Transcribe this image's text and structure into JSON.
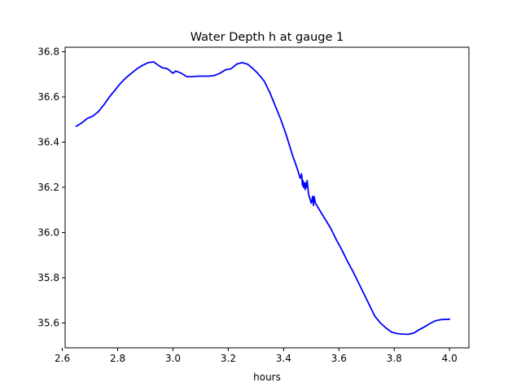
{
  "chart_data": {
    "type": "line",
    "title": "Water Depth h at gauge 1",
    "xlabel": "hours",
    "ylabel": "",
    "xlim": [
      2.61,
      4.07
    ],
    "ylim": [
      35.49,
      36.82
    ],
    "x_ticks": [
      2.6,
      2.8,
      3.0,
      3.2,
      3.4,
      3.6,
      3.8,
      4.0
    ],
    "x_tick_labels": [
      "2.6",
      "2.8",
      "3.0",
      "3.2",
      "3.4",
      "3.6",
      "3.8",
      "4.0"
    ],
    "y_ticks": [
      35.6,
      35.8,
      36.0,
      36.2,
      36.4,
      36.6,
      36.8
    ],
    "y_tick_labels": [
      "35.6",
      "35.8",
      "36.0",
      "36.2",
      "36.4",
      "36.6",
      "36.8"
    ],
    "grid": false,
    "legend": "none",
    "series": [
      {
        "color": "#0000ff",
        "x": [
          2.65,
          2.67,
          2.69,
          2.71,
          2.73,
          2.75,
          2.77,
          2.79,
          2.81,
          2.83,
          2.85,
          2.87,
          2.89,
          2.91,
          2.93,
          2.95,
          2.96,
          2.98,
          3.0,
          3.01,
          3.03,
          3.05,
          3.07,
          3.09,
          3.11,
          3.13,
          3.15,
          3.17,
          3.19,
          3.21,
          3.23,
          3.25,
          3.27,
          3.29,
          3.31,
          3.33,
          3.35,
          3.37,
          3.39,
          3.41,
          3.43,
          3.45,
          3.46,
          3.465,
          3.468,
          3.47,
          3.472,
          3.475,
          3.478,
          3.48,
          3.483,
          3.485,
          3.49,
          3.495,
          3.5,
          3.505,
          3.508,
          3.51,
          3.515,
          3.53,
          3.55,
          3.57,
          3.59,
          3.61,
          3.63,
          3.65,
          3.67,
          3.69,
          3.71,
          3.73,
          3.75,
          3.77,
          3.79,
          3.81,
          3.83,
          3.85,
          3.87,
          3.89,
          3.91,
          3.93,
          3.95,
          3.97,
          3.99,
          4.0
        ],
        "y": [
          36.47,
          36.485,
          36.505,
          36.515,
          36.535,
          36.565,
          36.6,
          36.63,
          36.66,
          36.685,
          36.705,
          36.725,
          36.74,
          36.752,
          36.755,
          36.738,
          36.73,
          36.725,
          36.705,
          36.715,
          36.705,
          36.69,
          36.69,
          36.692,
          36.692,
          36.692,
          36.695,
          36.705,
          36.72,
          36.725,
          36.745,
          36.752,
          36.745,
          36.725,
          36.7,
          36.67,
          36.62,
          36.56,
          36.5,
          36.43,
          36.35,
          36.28,
          36.24,
          36.26,
          36.21,
          36.23,
          36.2,
          36.22,
          36.19,
          36.22,
          36.2,
          36.23,
          36.17,
          36.15,
          36.13,
          36.16,
          36.12,
          36.16,
          36.13,
          36.1,
          36.06,
          36.02,
          35.97,
          35.925,
          35.875,
          35.83,
          35.78,
          35.73,
          35.68,
          35.63,
          35.6,
          35.578,
          35.56,
          35.553,
          35.551,
          35.55,
          35.555,
          35.57,
          35.583,
          35.598,
          35.61,
          35.615,
          35.616,
          35.617
        ]
      }
    ]
  }
}
